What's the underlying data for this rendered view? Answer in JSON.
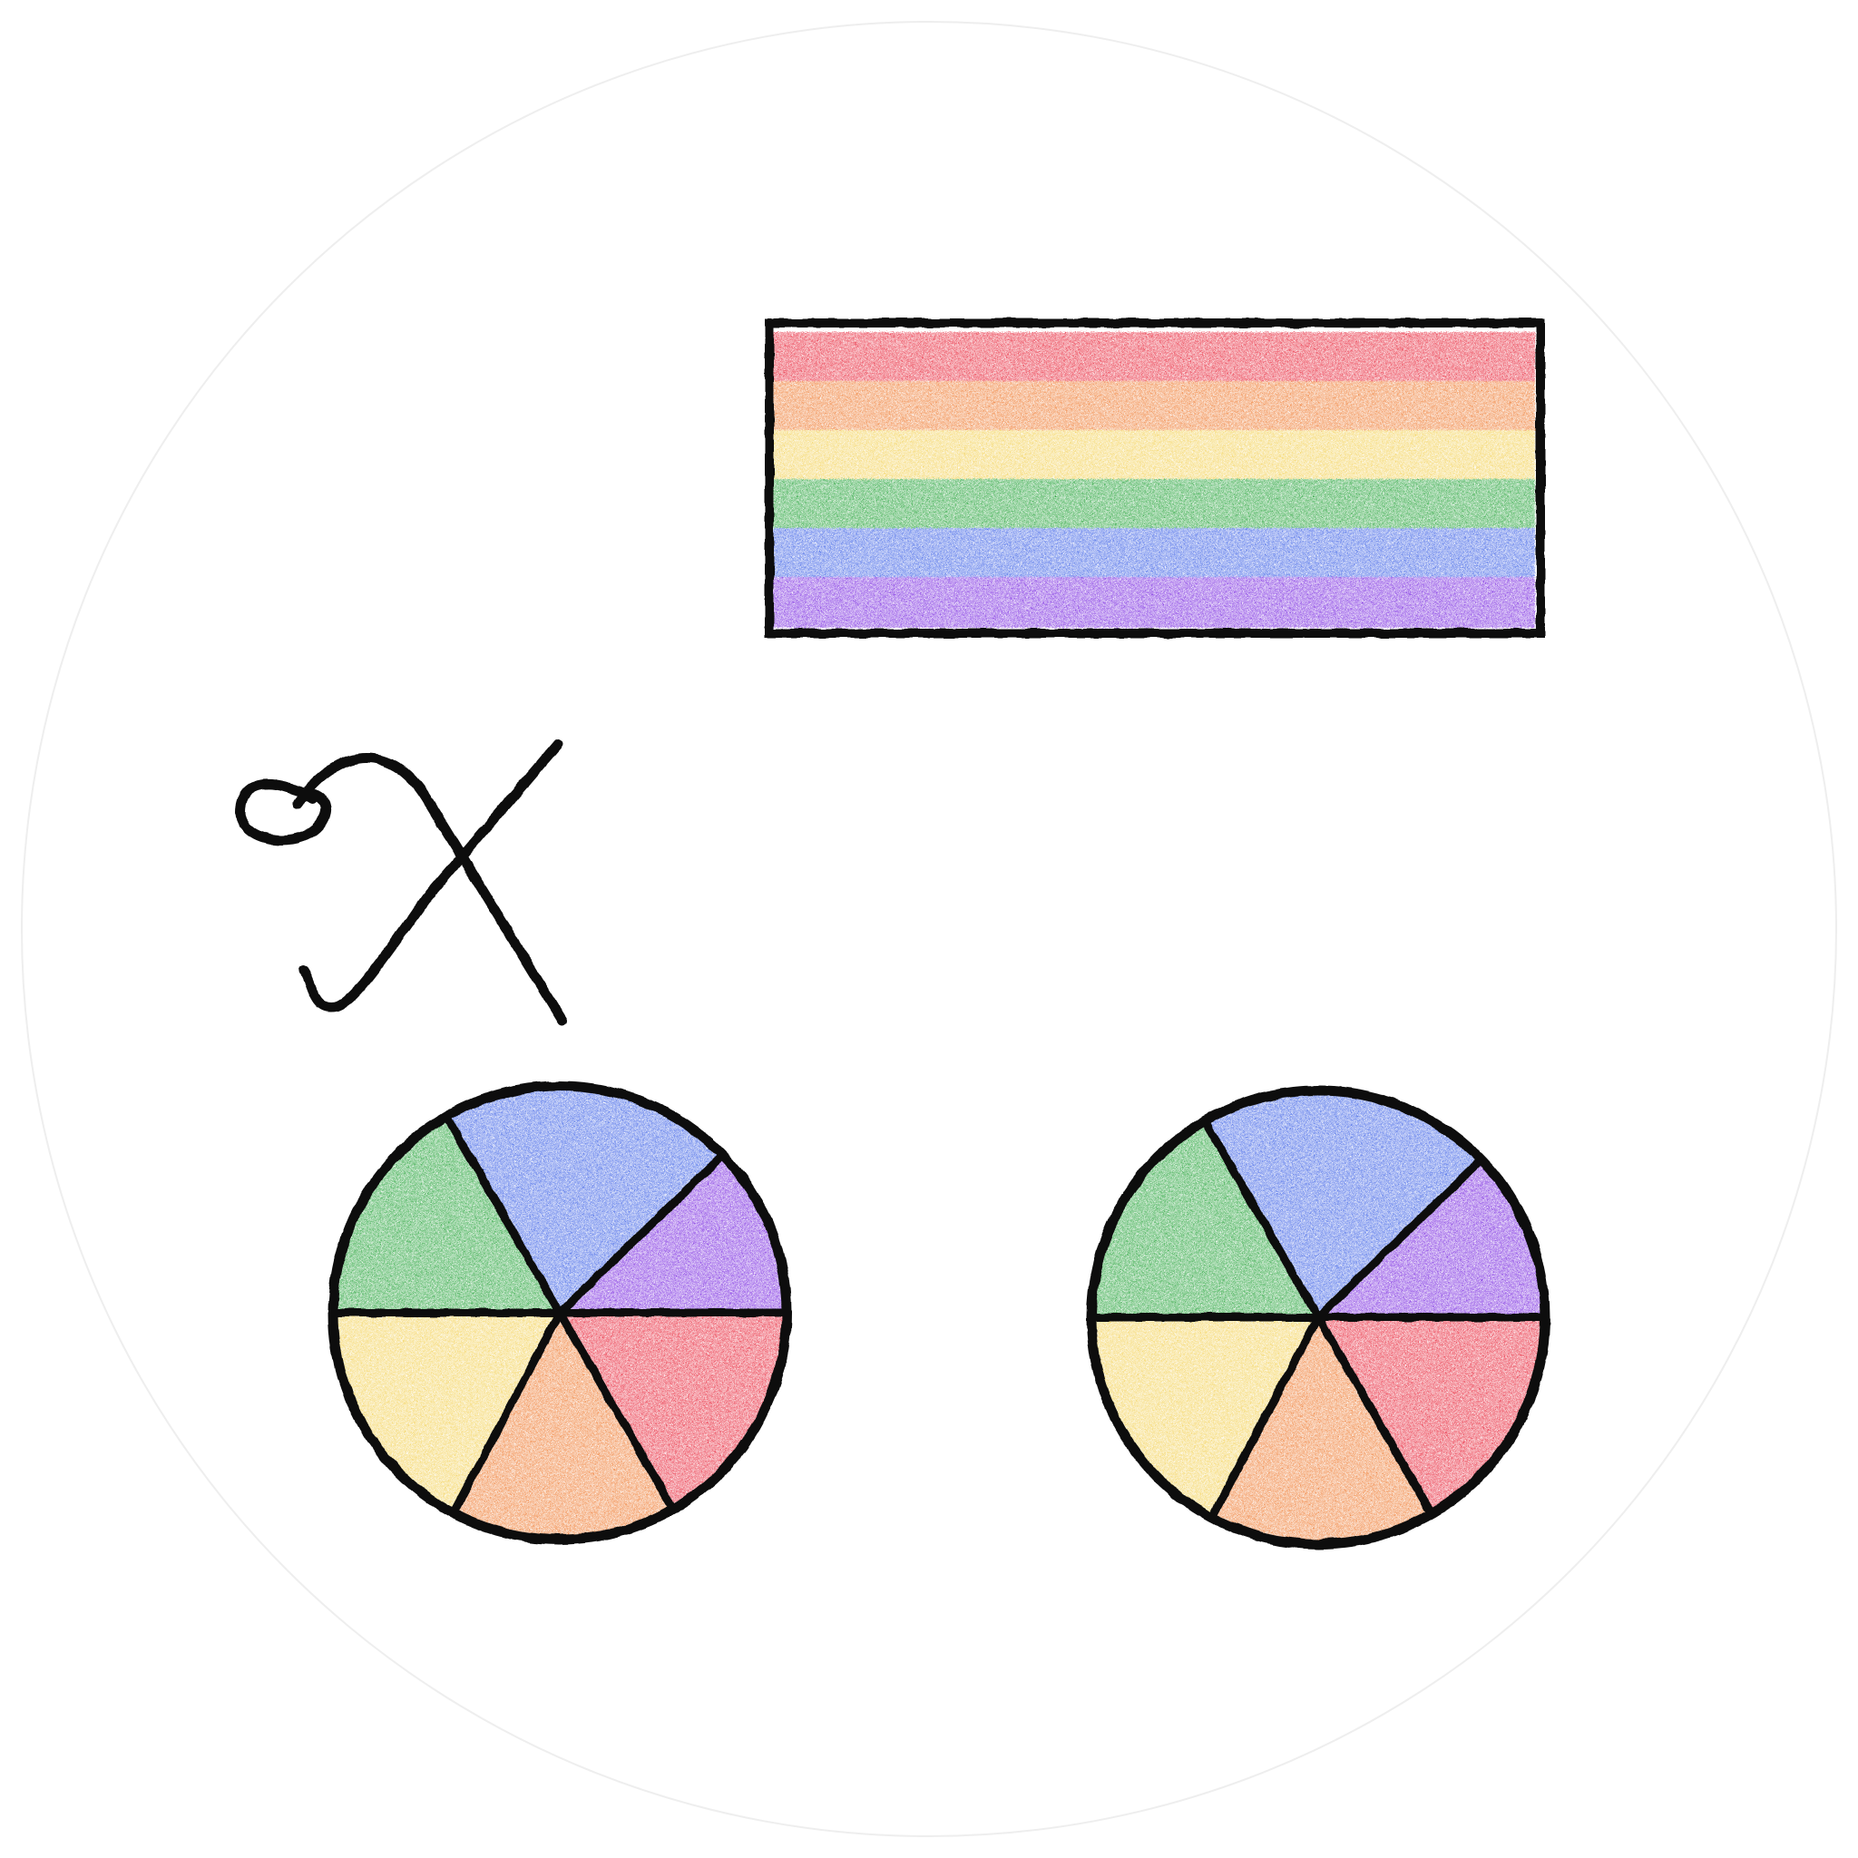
{
  "logo": {
    "symbol_icon": "chi-glyph-icon",
    "main_icon": "beamed-eighth-notes-icon",
    "head_icon": "color-wheel-icon"
  },
  "colors": {
    "red": "#e8283c",
    "orange": "#ef7d34",
    "yellow": "#f3d158",
    "green": "#26a33a",
    "blue": "#3f63e6",
    "purple": "#7a2be0",
    "ink": "#111111",
    "outer_ring": "#eeeeee"
  },
  "beam_stripe_order": [
    "red",
    "orange",
    "yellow",
    "green",
    "blue",
    "purple"
  ],
  "wheel_segment_order": [
    "red",
    "purple",
    "blue",
    "green",
    "yellow",
    "orange"
  ]
}
